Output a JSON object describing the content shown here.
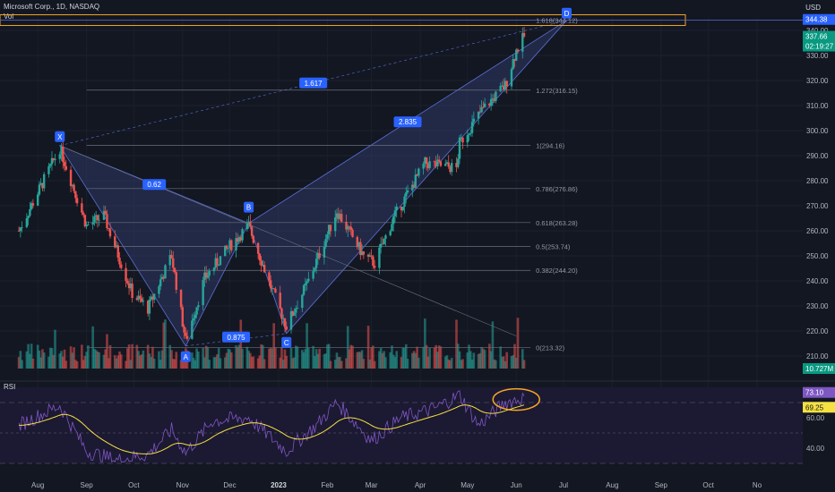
{
  "header": {
    "symbol_line": "Microsoft Corp., 1D, NASDAQ",
    "volume_label": "Vol",
    "currency": "USD"
  },
  "rsi_panel": {
    "label": "RSI",
    "value_label": "73.10",
    "ma_label": "69.25",
    "ticks": [
      "60.00",
      "40.00"
    ]
  },
  "colors": {
    "background": "#131722",
    "up": "#26a69a",
    "down": "#ef5350",
    "pattern_fill": "#3b4a8a",
    "pattern_line": "#5b6fd6",
    "rsi_line": "#7e57c2",
    "rsi_ma": "#f5e142",
    "highlight": "#f5a623"
  },
  "chart_data": {
    "type": "candlestick",
    "x_axis_labels": [
      "Aug",
      "Sep",
      "Oct",
      "Nov",
      "Dec",
      "2023",
      "Feb",
      "Mar",
      "Apr",
      "May",
      "Jun",
      "Jul",
      "Aug",
      "Sep",
      "Oct",
      "No"
    ],
    "y_ticks": [
      340,
      330,
      320,
      310,
      300,
      290,
      280,
      270,
      260,
      250,
      240,
      230,
      220,
      210
    ],
    "ylim": [
      205,
      345
    ],
    "price_labels": {
      "target": "344.38",
      "last": "337.66",
      "countdown": "02:19:27",
      "volume": "10.727M"
    },
    "pattern_points": [
      {
        "label": "X",
        "date": "2022-08-15",
        "price": 294
      },
      {
        "label": "A",
        "date": "2022-11-03",
        "price": 214
      },
      {
        "label": "B",
        "date": "2022-12-13",
        "price": 263
      },
      {
        "label": "C",
        "date": "2023-01-06",
        "price": 219
      },
      {
        "label": "D",
        "date": "2023-07-03",
        "price": 344
      }
    ],
    "ratio_labels": [
      "0.62",
      "0.875",
      "1.617",
      "2.835"
    ],
    "fib_levels": [
      {
        "label": "1.618(344.12)",
        "price": 344.12
      },
      {
        "label": "1.272(316.15)",
        "price": 316.15
      },
      {
        "label": "1(294.16)",
        "price": 294.16
      },
      {
        "label": "0.786(276.86)",
        "price": 276.86
      },
      {
        "label": "0.618(263.28)",
        "price": 263.28
      },
      {
        "label": "0.5(253.74)",
        "price": 253.74
      },
      {
        "label": "0.382(244.20)",
        "price": 244.2
      },
      {
        "label": "0(213.32)",
        "price": 213.32
      }
    ],
    "price_path": [
      {
        "date": "2022-07-20",
        "price": 260
      },
      {
        "date": "2022-08-15",
        "price": 293
      },
      {
        "date": "2022-09-01",
        "price": 262
      },
      {
        "date": "2022-09-12",
        "price": 266
      },
      {
        "date": "2022-09-30",
        "price": 235
      },
      {
        "date": "2022-10-10",
        "price": 229
      },
      {
        "date": "2022-10-25",
        "price": 250
      },
      {
        "date": "2022-11-03",
        "price": 216
      },
      {
        "date": "2022-11-15",
        "price": 241
      },
      {
        "date": "2022-12-01",
        "price": 254
      },
      {
        "date": "2022-12-13",
        "price": 262
      },
      {
        "date": "2022-12-28",
        "price": 236
      },
      {
        "date": "2023-01-06",
        "price": 222
      },
      {
        "date": "2023-01-20",
        "price": 240
      },
      {
        "date": "2023-02-07",
        "price": 268
      },
      {
        "date": "2023-02-24",
        "price": 250
      },
      {
        "date": "2023-03-03",
        "price": 247
      },
      {
        "date": "2023-03-15",
        "price": 265
      },
      {
        "date": "2023-04-04",
        "price": 287
      },
      {
        "date": "2023-04-24",
        "price": 285
      },
      {
        "date": "2023-04-26",
        "price": 295
      },
      {
        "date": "2023-05-10",
        "price": 308
      },
      {
        "date": "2023-05-25",
        "price": 318
      },
      {
        "date": "2023-06-01",
        "price": 332
      },
      {
        "date": "2023-06-06",
        "price": 337.66
      }
    ],
    "rsi_path": [
      {
        "date": "2022-07-20",
        "rsi": 55
      },
      {
        "date": "2022-08-15",
        "rsi": 68
      },
      {
        "date": "2022-09-01",
        "rsi": 38
      },
      {
        "date": "2022-09-20",
        "rsi": 32
      },
      {
        "date": "2022-10-10",
        "rsi": 36
      },
      {
        "date": "2022-10-25",
        "rsi": 52
      },
      {
        "date": "2022-11-03",
        "rsi": 37
      },
      {
        "date": "2022-11-20",
        "rsi": 58
      },
      {
        "date": "2022-12-13",
        "rsi": 60
      },
      {
        "date": "2023-01-06",
        "rsi": 38
      },
      {
        "date": "2023-01-25",
        "rsi": 55
      },
      {
        "date": "2023-02-07",
        "rsi": 70
      },
      {
        "date": "2023-03-01",
        "rsi": 45
      },
      {
        "date": "2023-03-20",
        "rsi": 60
      },
      {
        "date": "2023-04-10",
        "rsi": 66
      },
      {
        "date": "2023-04-26",
        "rsi": 75
      },
      {
        "date": "2023-05-08",
        "rsi": 55
      },
      {
        "date": "2023-05-25",
        "rsi": 70
      },
      {
        "date": "2023-06-06",
        "rsi": 73.1
      }
    ],
    "rsi_ylim": [
      30,
      80
    ]
  }
}
